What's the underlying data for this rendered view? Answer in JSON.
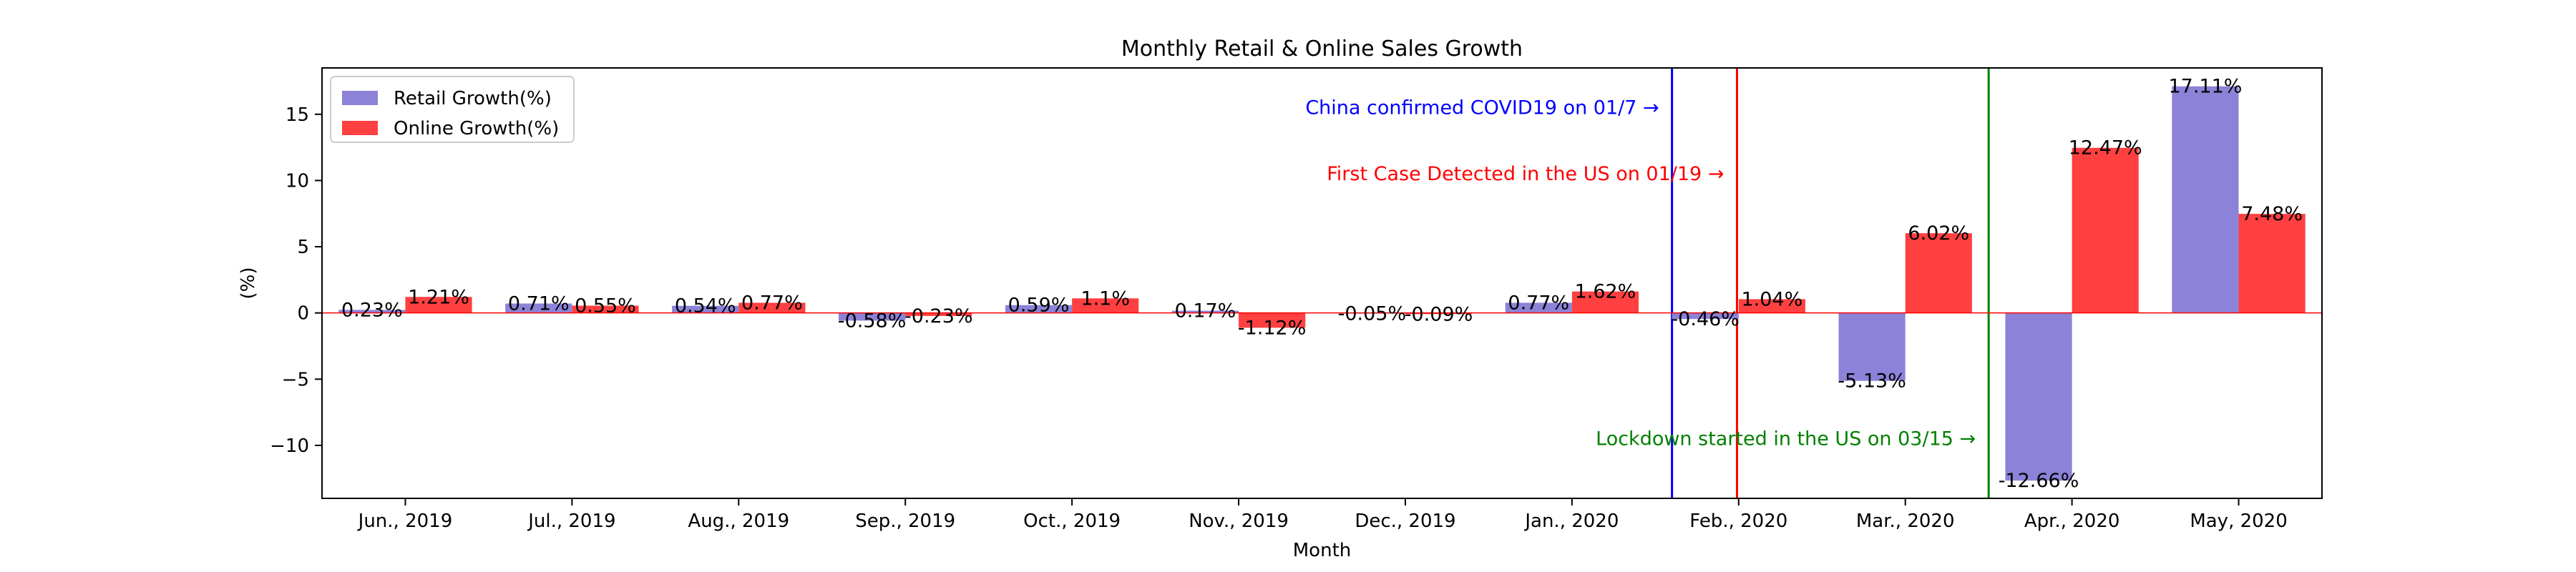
{
  "chart_data": {
    "type": "bar",
    "title": "Monthly Retail & Online Sales Growth",
    "xlabel": "Month",
    "ylabel": "(%)",
    "categories": [
      "Jun., 2019",
      "Jul., 2019",
      "Aug., 2019",
      "Sep., 2019",
      "Oct., 2019",
      "Nov., 2019",
      "Dec., 2019",
      "Jan., 2020",
      "Feb., 2020",
      "Mar., 2020",
      "Apr., 2020",
      "May, 2020"
    ],
    "series": [
      {
        "name": "Retail Growth(%)",
        "color": "#8c82d8",
        "values": [
          0.23,
          0.71,
          0.54,
          -0.58,
          0.59,
          0.17,
          -0.05,
          0.77,
          -0.46,
          -5.13,
          -12.66,
          17.11
        ],
        "labels": [
          "0.23%",
          "0.71%",
          "0.54%",
          "-0.58%",
          "0.59%",
          "0.17%",
          "-0.05%",
          "0.77%",
          "-0.46%",
          "-5.13%",
          "-12.66%",
          "17.11%"
        ]
      },
      {
        "name": "Online Growth(%)",
        "color": "#ff4040",
        "values": [
          1.21,
          0.55,
          0.77,
          -0.23,
          1.1,
          -1.12,
          -0.09,
          1.62,
          1.04,
          6.02,
          12.47,
          7.48
        ],
        "labels": [
          "1.21%",
          "0.55%",
          "0.77%",
          "-0.23%",
          "1.1%",
          "-1.12%",
          "-0.09%",
          "1.62%",
          "1.04%",
          "6.02%",
          "12.47%",
          "7.48%"
        ]
      }
    ],
    "ylim": [
      -14,
      18.5
    ],
    "yticks": [
      -10,
      -5,
      0,
      5,
      10,
      15
    ],
    "yticklabels": [
      "−10",
      "−5",
      "0",
      "5",
      "10",
      "15"
    ],
    "zero_line_color": "#ff0000",
    "grid": false,
    "legend_position": "top-left",
    "annotations": [
      {
        "text": "China confirmed COVID19 on 01/7 →",
        "color": "#0000ff",
        "line_at_category": 7.6,
        "y": 15.5
      },
      {
        "text": "First Case Detected in the US on 01/19 →",
        "color": "#ff0000",
        "line_at_category": 7.99,
        "y": 10.5
      },
      {
        "text": "Lockdown started in the US on 03/15 →",
        "color": "#008000",
        "line_at_category": 9.5,
        "y": -9.5
      }
    ]
  }
}
